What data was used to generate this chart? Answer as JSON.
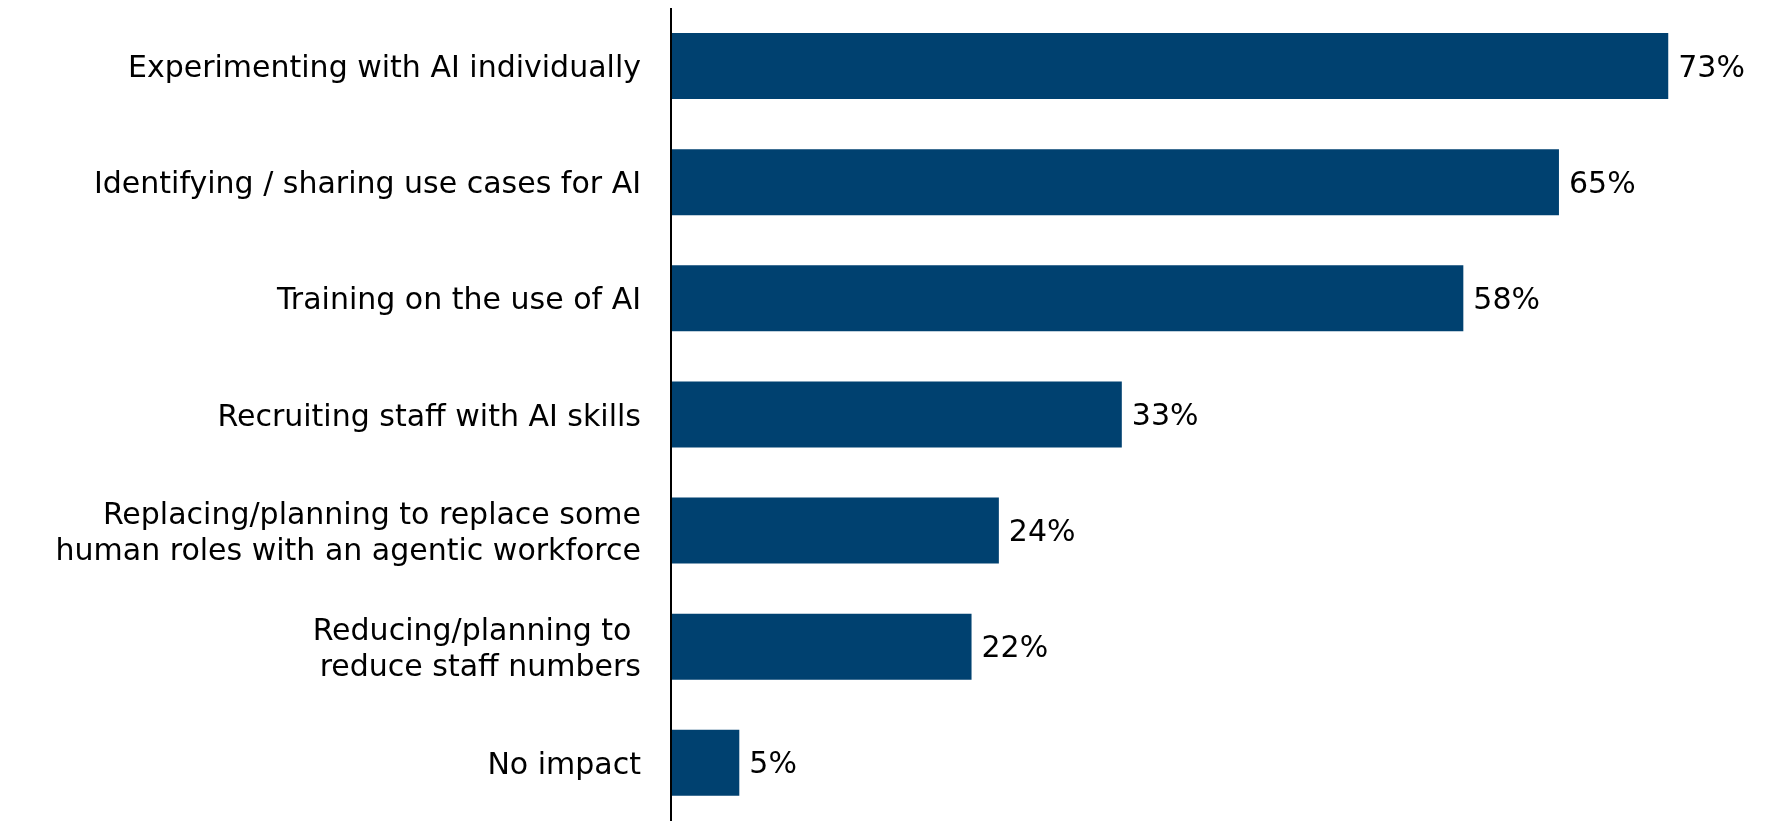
{
  "chart_data": {
    "type": "bar",
    "orientation": "horizontal",
    "categories": [
      "Experimenting with AI individually",
      "Identifying / sharing use cases for AI",
      "Training on the use of AI",
      "Recruiting staff with AI skills",
      "Replacing/planning to replace some\nhuman roles with an agentic workforce",
      "Reducing/planning to \nreduce staff numbers",
      "No impact"
    ],
    "values": [
      73,
      65,
      58,
      33,
      24,
      22,
      5
    ],
    "value_labels": [
      "73%",
      "65%",
      "58%",
      "33%",
      "24%",
      "22%",
      "5%"
    ],
    "color": "#004170",
    "grid": false,
    "legend": false
  }
}
